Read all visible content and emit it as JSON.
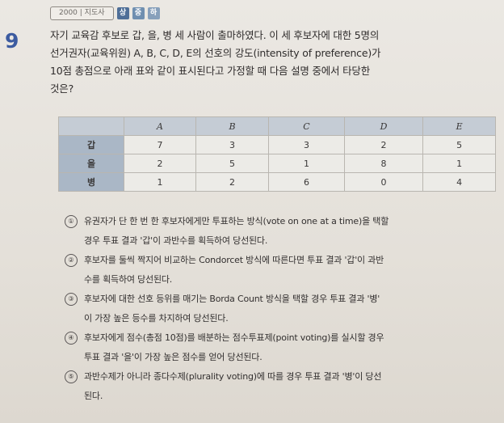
{
  "header": {
    "tag_text": "2000 | 지도사",
    "badges": [
      "상",
      "중",
      "하"
    ]
  },
  "question": {
    "number": "9",
    "lines": [
      "자기 교육감 후보로 갑, 을, 병 세 사람이 출마하였다. 이 세 후보자에 대한 5명의",
      "선거권자(교육위원) A, B, C, D, E의 선호의 강도(intensity of preference)가",
      "10점 총점으로 아래 표와 같이 표시된다고 가정할 때 다음 설명 중에서 타당한",
      "것은?"
    ]
  },
  "table": {
    "columns": [
      "A",
      "B",
      "C",
      "D",
      "E"
    ],
    "rows": [
      {
        "label": "갑",
        "values": [
          "7",
          "3",
          "3",
          "2",
          "5"
        ]
      },
      {
        "label": "을",
        "values": [
          "2",
          "5",
          "1",
          "8",
          "1"
        ]
      },
      {
        "label": "병",
        "values": [
          "1",
          "2",
          "6",
          "0",
          "4"
        ]
      }
    ]
  },
  "options": [
    {
      "num": "①",
      "lines": [
        "유권자가 단 한 번 한 후보자에게만 투표하는 방식(vote on one at a time)을 택할",
        "경우 투표 결과 '갑'이 과반수를 획득하여 당선된다."
      ]
    },
    {
      "num": "②",
      "lines": [
        "후보자를 둘씩 짝지어 비교하는 Condorcet 방식에 따른다면 투표 결과 '갑'이 과반",
        "수를 획득하여 당선된다."
      ]
    },
    {
      "num": "③",
      "lines": [
        "후보자에 대한 선호 등위를 매기는 Borda Count 방식을 택할 경우 투표 결과 '병'",
        "이 가장 높은 등수를 차지하여 당선된다."
      ]
    },
    {
      "num": "④",
      "lines": [
        "후보자에게 점수(총점 10점)를 배분하는 점수투표제(point voting)를 실시할 경우",
        "투표 결과 '을'이 가장 높은 점수를 얻어 당선된다."
      ]
    },
    {
      "num": "⑤",
      "lines": [
        "과반수제가 아니라 종다수제(plurality voting)에 따를 경우 투표 결과 '병'이 당선",
        "된다."
      ]
    }
  ]
}
